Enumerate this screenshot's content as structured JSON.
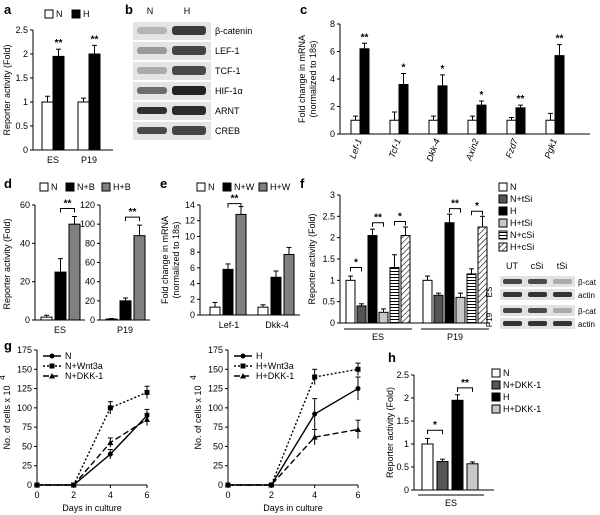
{
  "colors": {
    "N": "#ffffff",
    "H": "#000000",
    "B": "#000000",
    "HB": "#808080",
    "dark": "#555555",
    "light": "#c8c8c8",
    "stroke": "#000000"
  },
  "chart_data": [
    {
      "panel": "a",
      "type": "bar",
      "ylabel": "Reporter activity (Fold)",
      "ylim": [
        0,
        2.5
      ],
      "yticks": [
        0,
        0.5,
        1,
        1.5,
        2,
        2.5
      ],
      "legend": [
        "N",
        "H"
      ],
      "categories": [
        "ES",
        "P19"
      ],
      "series": [
        {
          "name": "N",
          "values": [
            1.0,
            1.0
          ],
          "errors": [
            0.12,
            0.08
          ]
        },
        {
          "name": "H",
          "values": [
            1.95,
            2.0
          ],
          "errors": [
            0.15,
            0.18
          ]
        }
      ],
      "annotations": [
        "**",
        "**"
      ]
    },
    {
      "panel": "b",
      "type": "blot",
      "columns": [
        "N",
        "H"
      ],
      "rows": [
        "β-catenin",
        "LEF-1",
        "TCF-1",
        "HIF-1α",
        "ARNT",
        "CREB"
      ]
    },
    {
      "panel": "c",
      "type": "bar",
      "ylabel": "Fold change in mRNA (normalized to 18s)",
      "ylim": [
        0,
        8
      ],
      "yticks": [
        0,
        2,
        4,
        6,
        8
      ],
      "categories": [
        "Lef-1",
        "Tcf-1",
        "Dkk-4",
        "Axin2",
        "Fzd7",
        "Pgk1"
      ],
      "series": [
        {
          "name": "N",
          "values": [
            1.0,
            1.0,
            1.0,
            1.0,
            1.0,
            1.0
          ],
          "errors": [
            0.3,
            0.6,
            0.3,
            0.3,
            0.2,
            0.5
          ]
        },
        {
          "name": "H",
          "values": [
            6.2,
            3.6,
            3.5,
            2.1,
            1.9,
            5.7
          ],
          "errors": [
            0.4,
            0.8,
            0.8,
            0.3,
            0.2,
            0.8
          ]
        }
      ],
      "annotations": [
        "**",
        "*",
        "*",
        "*",
        "**",
        "**"
      ]
    },
    {
      "panel": "d",
      "type": "bar",
      "ylabel": "Reporter activity (Fold)",
      "legend": [
        "N",
        "N+B",
        "H+B"
      ],
      "subplots": [
        {
          "category": "ES",
          "ylim": [
            0,
            60
          ],
          "yticks": [
            0,
            20,
            40,
            60
          ],
          "values": [
            1.5,
            25,
            50
          ],
          "errors": [
            1.0,
            7,
            4
          ],
          "annotations": [
            "**"
          ]
        },
        {
          "category": "P19",
          "ylim": [
            0,
            120
          ],
          "yticks": [
            0,
            20,
            40,
            60,
            80,
            100,
            120
          ],
          "values": [
            1.0,
            20,
            88
          ],
          "errors": [
            0.5,
            3,
            11
          ],
          "annotations": [
            "**"
          ]
        }
      ]
    },
    {
      "panel": "e",
      "type": "bar",
      "ylabel": "Fold change in mRNA (normalized to 18s)",
      "ylim": [
        0,
        14
      ],
      "yticks": [
        0,
        2,
        4,
        6,
        8,
        10,
        12,
        14
      ],
      "legend": [
        "N",
        "N+W",
        "H+W"
      ],
      "categories": [
        "Lef-1",
        "Dkk-4"
      ],
      "series": [
        {
          "name": "N",
          "values": [
            1.0,
            1.0
          ],
          "errors": [
            0.6,
            0.3
          ]
        },
        {
          "name": "N+W",
          "values": [
            5.8,
            4.8
          ],
          "errors": [
            0.7,
            0.8
          ]
        },
        {
          "name": "H+W",
          "values": [
            12.8,
            7.7
          ],
          "errors": [
            1.0,
            0.9
          ]
        }
      ],
      "annotations": [
        "**"
      ]
    },
    {
      "panel": "f",
      "type": "bar",
      "ylabel": "Reporter activity (Fold)",
      "ylim": [
        0,
        3
      ],
      "yticks": [
        0,
        0.5,
        1,
        1.5,
        2,
        2.5,
        3
      ],
      "legend": [
        "N",
        "N+tSi",
        "H",
        "H+tSi",
        "N+cSi",
        "H+cSi"
      ],
      "categories": [
        "ES",
        "P19"
      ],
      "series": [
        {
          "name": "N",
          "values": [
            1.0,
            1.0
          ],
          "errors": [
            0.1,
            0.1
          ]
        },
        {
          "name": "N+tSi",
          "values": [
            0.4,
            0.65
          ],
          "errors": [
            0.05,
            0.05
          ]
        },
        {
          "name": "H",
          "values": [
            2.05,
            2.35
          ],
          "errors": [
            0.15,
            0.2
          ]
        },
        {
          "name": "H+tSi",
          "values": [
            0.25,
            0.6
          ],
          "errors": [
            0.08,
            0.1
          ]
        },
        {
          "name": "N+cSi",
          "values": [
            1.3,
            1.15
          ],
          "errors": [
            0.3,
            0.12
          ]
        },
        {
          "name": "H+cSi",
          "values": [
            2.05,
            2.25
          ],
          "errors": [
            0.2,
            0.25
          ]
        }
      ],
      "annotations": [
        "*",
        "**",
        "*",
        "**",
        "*"
      ],
      "blot": {
        "columns": [
          "UT",
          "cSi",
          "tSi"
        ],
        "rows": [
          "β-cat",
          "actin",
          "β-cat",
          "actin"
        ],
        "groups": [
          "ES",
          "P19"
        ]
      }
    },
    {
      "panel": "g",
      "type": "line",
      "ylabel": "No. of cells x 10",
      "ylabel_sup": "4",
      "xlabel": "Days in culture",
      "subplots": [
        {
          "x": [
            0,
            2,
            4,
            6
          ],
          "ylim": [
            0,
            175
          ],
          "yticks": [
            0,
            25,
            50,
            75,
            100,
            125,
            150,
            175
          ],
          "series": [
            {
              "name": "N",
              "values": [
                0,
                0,
                40,
                90
              ],
              "errors": [
                1,
                1,
                6,
                8
              ],
              "style": "solid",
              "marker": "circle"
            },
            {
              "name": "N+Wnt3a",
              "values": [
                0,
                0,
                100,
                120
              ],
              "errors": [
                1,
                1,
                8,
                8
              ],
              "style": "dotted",
              "marker": "square"
            },
            {
              "name": "N+DKK-1",
              "values": [
                0,
                0,
                55,
                85
              ],
              "errors": [
                1,
                1,
                6,
                8
              ],
              "style": "dashed",
              "marker": "triangle"
            }
          ]
        },
        {
          "x": [
            0,
            2,
            4,
            6
          ],
          "ylim": [
            0,
            175
          ],
          "yticks": [
            0,
            25,
            50,
            75,
            100,
            125,
            150,
            175
          ],
          "series": [
            {
              "name": "H",
              "values": [
                0,
                0,
                92,
                125
              ],
              "errors": [
                1,
                1,
                20,
                15
              ],
              "style": "solid",
              "marker": "circle"
            },
            {
              "name": "H+Wnt3a",
              "values": [
                0,
                0,
                140,
                150
              ],
              "errors": [
                1,
                1,
                10,
                8
              ],
              "style": "dotted",
              "marker": "square"
            },
            {
              "name": "H+DKK-1",
              "values": [
                0,
                0,
                62,
                72
              ],
              "errors": [
                1,
                1,
                10,
                12
              ],
              "style": "dashed",
              "marker": "triangle"
            }
          ]
        }
      ]
    },
    {
      "panel": "h",
      "type": "bar",
      "ylabel": "Reporter activity (Fold)",
      "ylim": [
        0,
        2.5
      ],
      "yticks": [
        0,
        0.5,
        1,
        1.5,
        2,
        2.5
      ],
      "legend": [
        "N",
        "N+DKK-1",
        "H",
        "H+DKK-1"
      ],
      "categories": [
        "ES"
      ],
      "series": [
        {
          "name": "N",
          "values": [
            1.0
          ],
          "errors": [
            0.12
          ]
        },
        {
          "name": "N+DKK-1",
          "values": [
            0.62
          ],
          "errors": [
            0.05
          ]
        },
        {
          "name": "H",
          "values": [
            1.95
          ],
          "errors": [
            0.12
          ]
        },
        {
          "name": "H+DKK-1",
          "values": [
            0.57
          ],
          "errors": [
            0.04
          ]
        }
      ],
      "annotations": [
        "*",
        "**"
      ]
    }
  ]
}
